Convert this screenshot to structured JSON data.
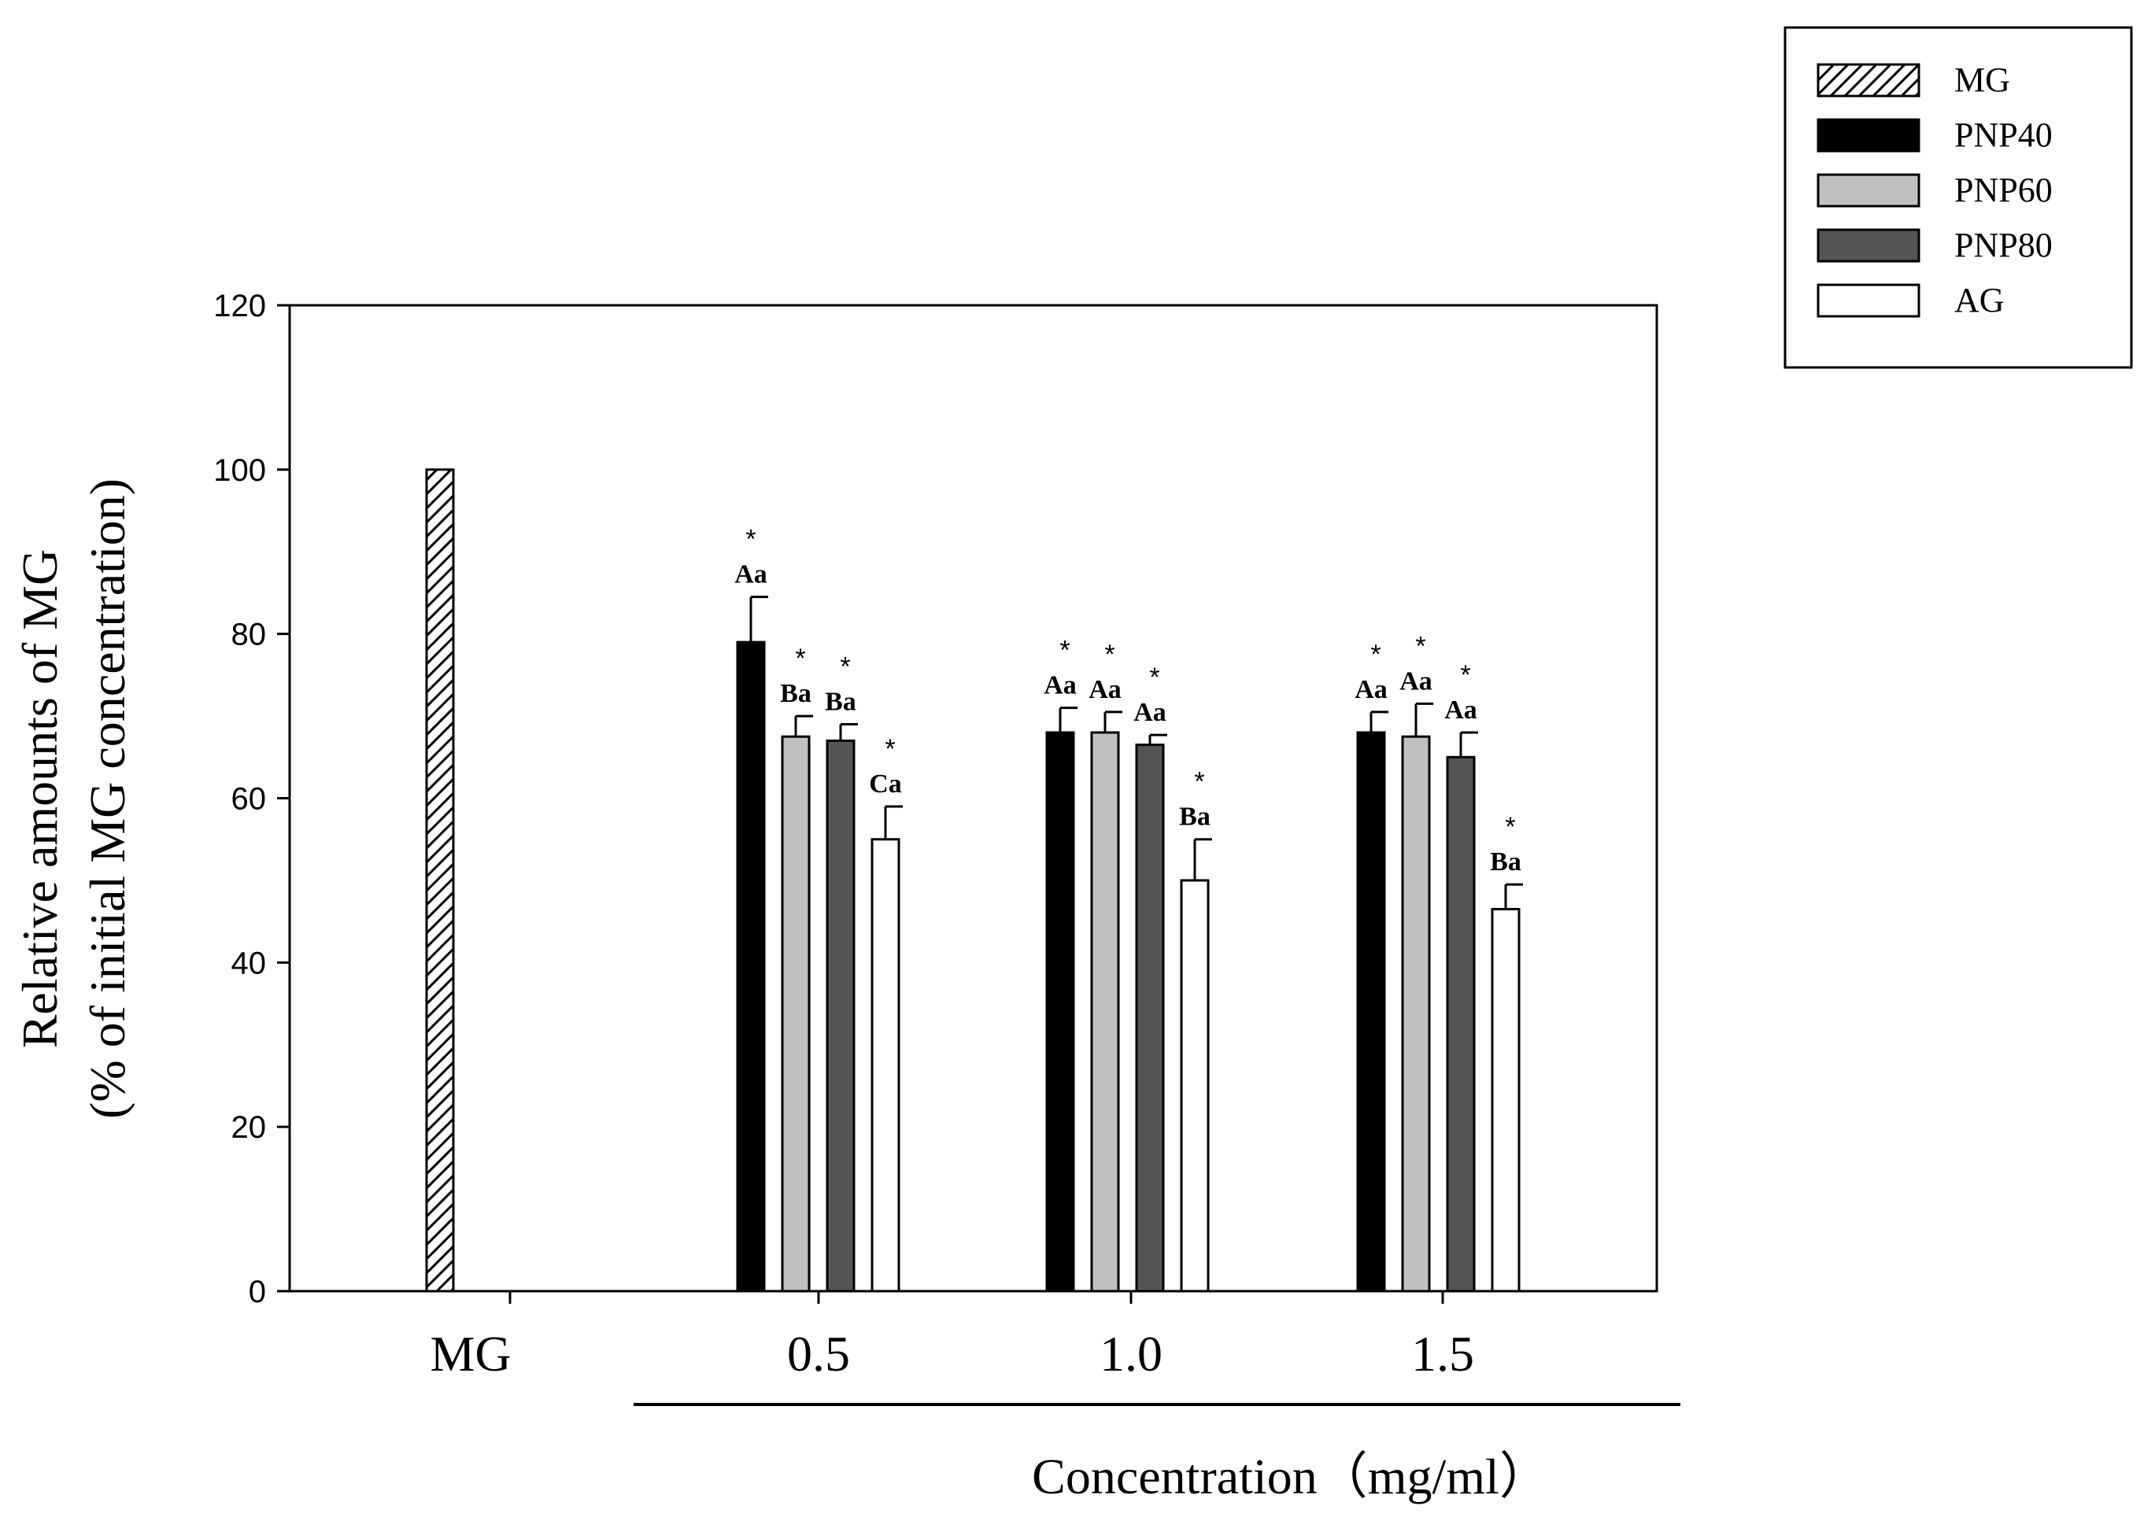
{
  "chart_data": {
    "type": "bar",
    "title": "",
    "xlabel": "Concentration（mg/ml）",
    "ylabel": "Relative amounts of MG",
    "ylabel2": "(% of initial MG concentration)",
    "ylim": [
      0,
      120
    ],
    "yticks": [
      "0",
      "20",
      "40",
      "60",
      "80",
      "100",
      "120"
    ],
    "grid": false,
    "legend_position": "top-right",
    "categories": [
      "MG",
      "0.5",
      "1.0",
      "1.5"
    ],
    "series": [
      {
        "name": "MG",
        "fill": "hatch",
        "values": [
          100,
          null,
          null,
          null
        ],
        "errors": [
          0,
          null,
          null,
          null
        ],
        "labels": [
          null,
          null,
          null,
          null
        ],
        "stars": [
          false,
          false,
          false,
          false
        ]
      },
      {
        "name": "PNP40",
        "fill": "#000000",
        "values": [
          null,
          79,
          68,
          68
        ],
        "errors": [
          null,
          5.5,
          3,
          2.5
        ],
        "labels": [
          null,
          "Aa",
          "Aa",
          "Aa"
        ],
        "stars": [
          false,
          true,
          true,
          true
        ]
      },
      {
        "name": "PNP60",
        "fill": "#c0c0c0",
        "values": [
          null,
          67.5,
          68,
          67.5
        ],
        "errors": [
          null,
          2.5,
          2.5,
          4
        ],
        "labels": [
          null,
          "Ba",
          "Aa",
          "Aa"
        ],
        "stars": [
          false,
          true,
          true,
          true
        ]
      },
      {
        "name": "PNP80",
        "fill": "#555555",
        "values": [
          null,
          67,
          66.5,
          65
        ],
        "errors": [
          null,
          2,
          1.2,
          3
        ],
        "labels": [
          null,
          "Ba",
          "Aa",
          "Aa"
        ],
        "stars": [
          false,
          true,
          true,
          true
        ]
      },
      {
        "name": "AG",
        "fill": "#ffffff",
        "values": [
          null,
          55,
          50,
          46.5
        ],
        "errors": [
          null,
          4,
          5,
          3
        ],
        "labels": [
          null,
          "Ca",
          "Ba",
          "Ba"
        ],
        "stars": [
          false,
          true,
          true,
          true
        ]
      }
    ],
    "star_symbol": "*"
  }
}
